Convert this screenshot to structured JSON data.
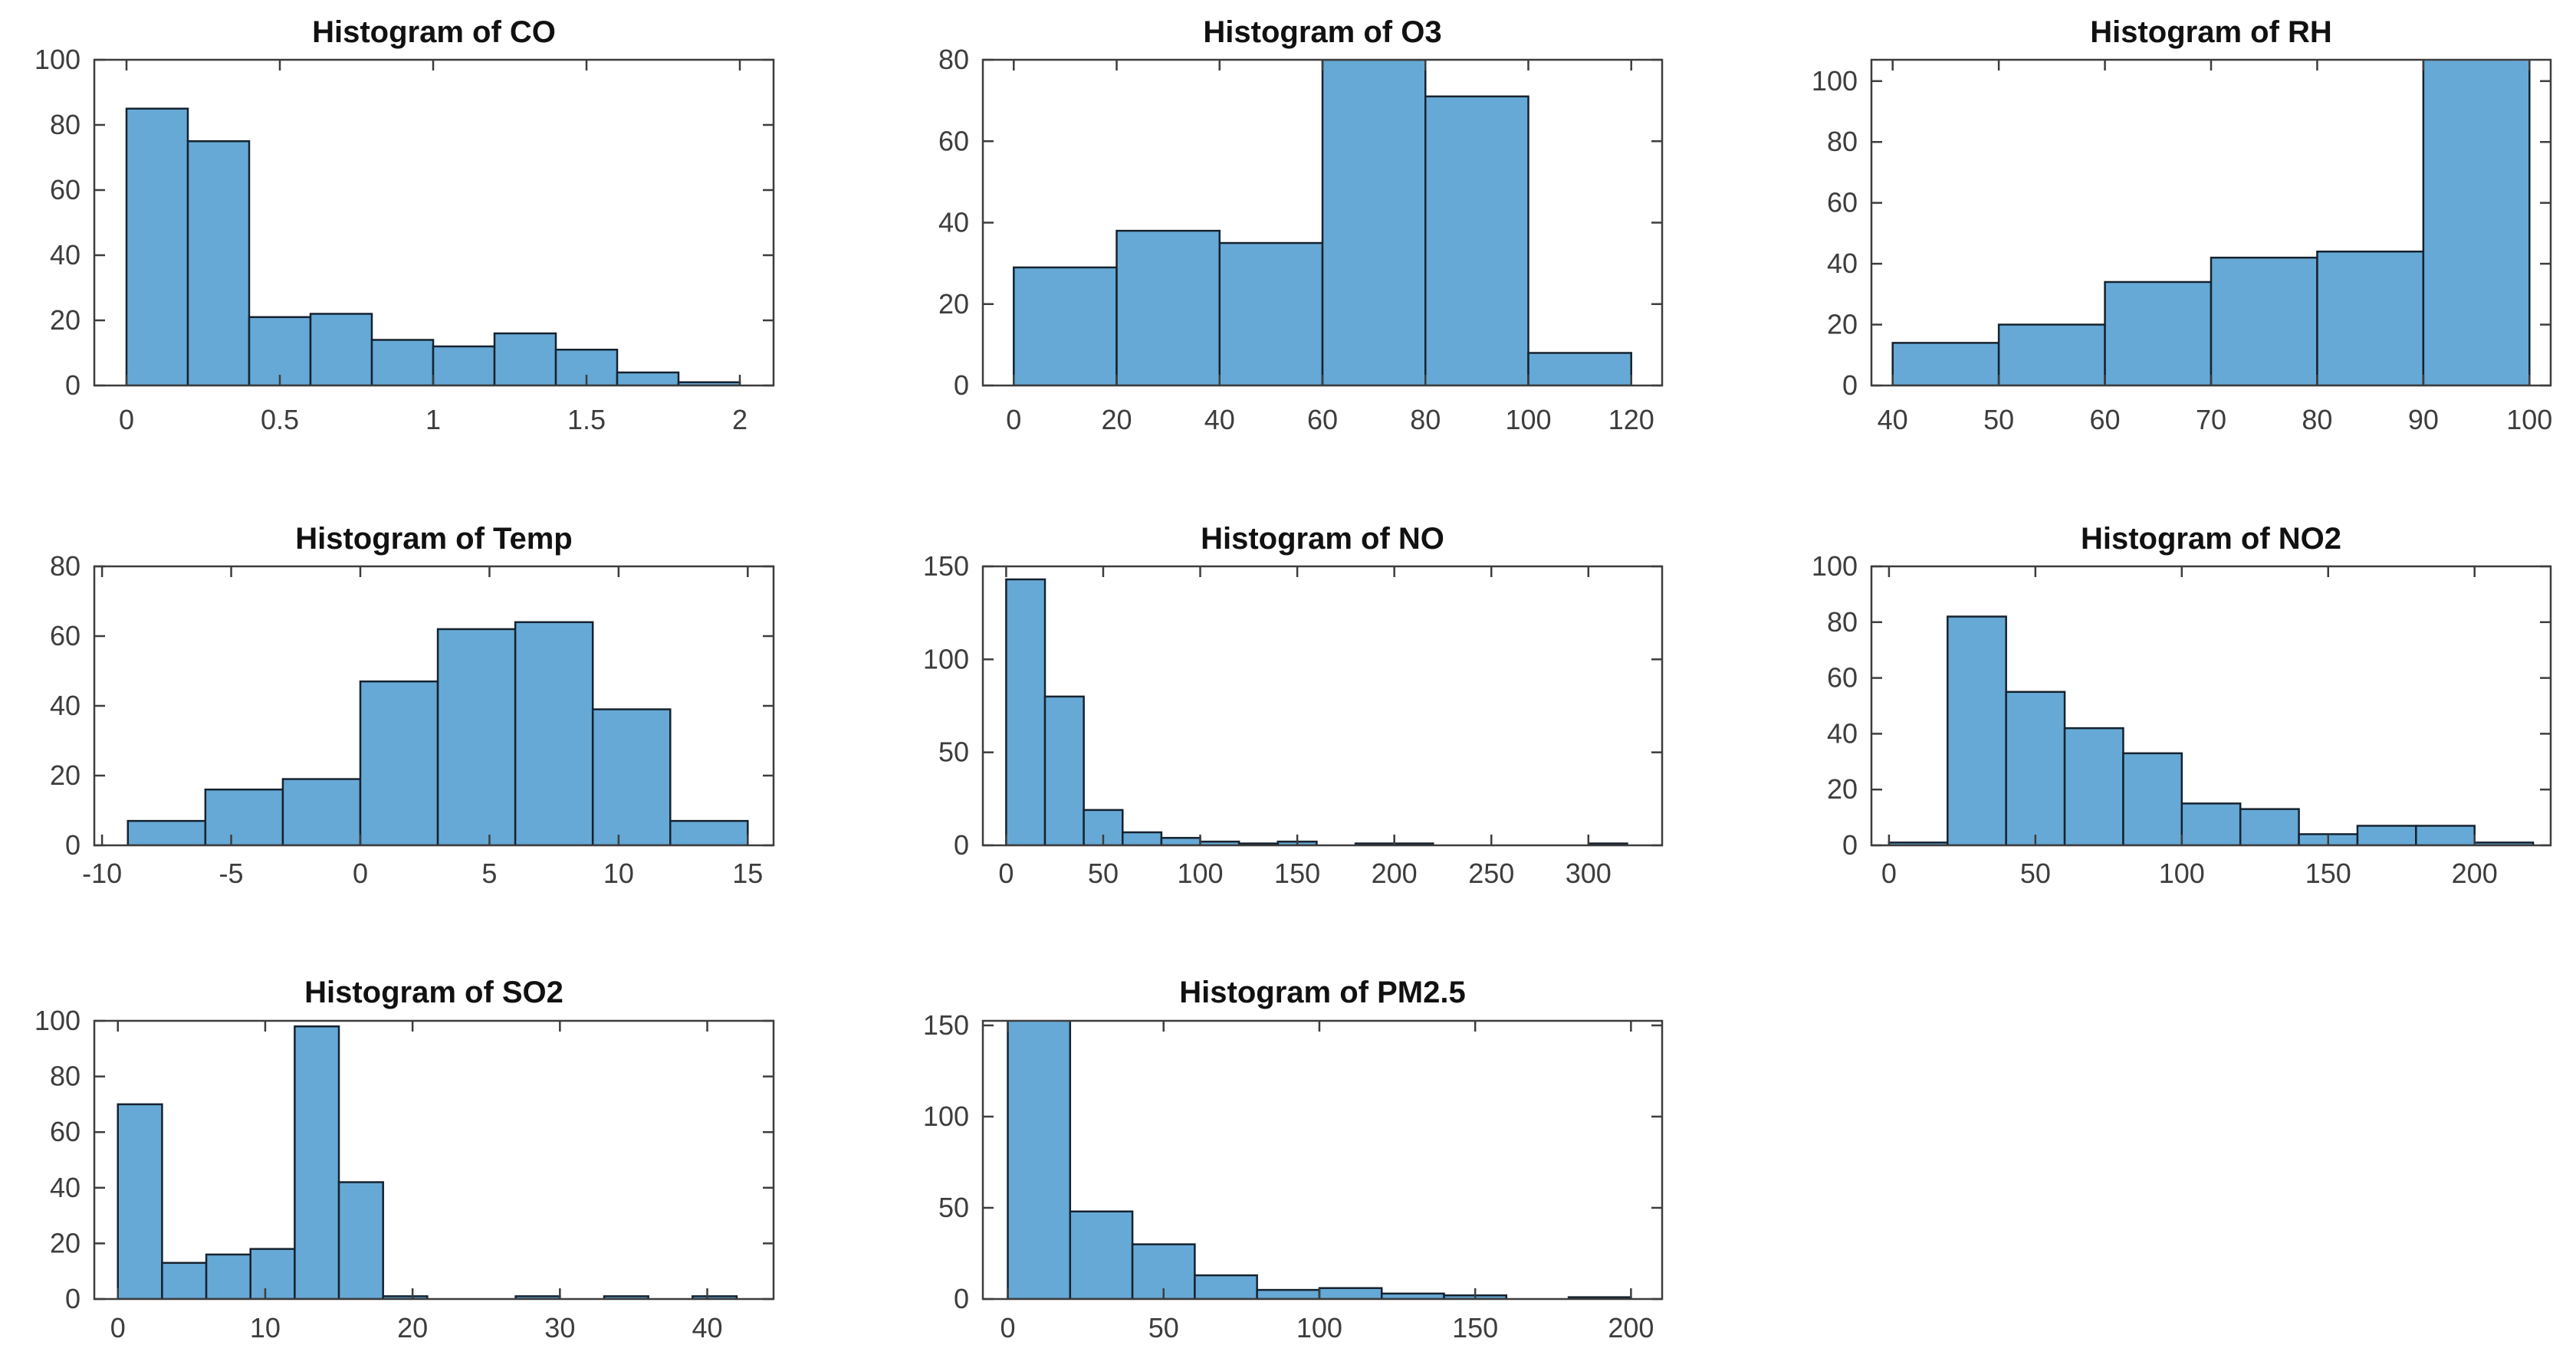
{
  "figure": {
    "background": "#ffffff",
    "description": "3x3 grid of MATLAB-style histograms, last cell empty"
  },
  "style": {
    "bar_fill": "#66A9D6",
    "bar_edge": "#16222e",
    "axis_color": "#3d3d3d",
    "title_color": "#111111"
  },
  "chart_data": [
    {
      "type": "bar",
      "name": "CO",
      "title": "Histogram of CO",
      "xlim": [
        -0.105,
        2.11
      ],
      "ylim": [
        0,
        100
      ],
      "xticks": [
        0,
        0.5,
        1,
        1.5,
        2
      ],
      "xtick_labels": [
        "0",
        "0.5",
        "1",
        "1.5",
        "2"
      ],
      "yticks": [
        0,
        20,
        40,
        60,
        80,
        100
      ],
      "ytick_labels": [
        "0",
        "20",
        "40",
        "60",
        "80",
        "100"
      ],
      "bins": [
        [
          0,
          0.2,
          85
        ],
        [
          0.2,
          0.4,
          75
        ],
        [
          0.4,
          0.6,
          21
        ],
        [
          0.6,
          0.8,
          22
        ],
        [
          0.8,
          1.0,
          14
        ],
        [
          1.0,
          1.2,
          12
        ],
        [
          1.2,
          1.4,
          16
        ],
        [
          1.4,
          1.6,
          11
        ],
        [
          1.6,
          1.8,
          4
        ],
        [
          1.8,
          2.0,
          1
        ]
      ]
    },
    {
      "type": "bar",
      "name": "O3",
      "title": "Histogram of O3",
      "xlim": [
        -6,
        126
      ],
      "ylim": [
        0,
        80
      ],
      "xticks": [
        0,
        20,
        40,
        60,
        80,
        100,
        120
      ],
      "xtick_labels": [
        "0",
        "20",
        "40",
        "60",
        "80",
        "100",
        "120"
      ],
      "yticks": [
        0,
        20,
        40,
        60,
        80
      ],
      "ytick_labels": [
        "0",
        "20",
        "40",
        "60",
        "80"
      ],
      "bins": [
        [
          0,
          20,
          29
        ],
        [
          20,
          40,
          38
        ],
        [
          40,
          60,
          35
        ],
        [
          60,
          80,
          80
        ],
        [
          80,
          100,
          71
        ],
        [
          100,
          120,
          8
        ]
      ]
    },
    {
      "type": "bar",
      "name": "RH",
      "title": "Histogram of RH",
      "xlim": [
        38,
        102
      ],
      "ylim": [
        0,
        107
      ],
      "xticks": [
        40,
        50,
        60,
        70,
        80,
        90,
        100
      ],
      "xtick_labels": [
        "40",
        "50",
        "60",
        "70",
        "80",
        "90",
        "100"
      ],
      "yticks": [
        0,
        20,
        40,
        60,
        80,
        100
      ],
      "ytick_labels": [
        "0",
        "20",
        "40",
        "60",
        "80",
        "100"
      ],
      "bins": [
        [
          40,
          50,
          14
        ],
        [
          50,
          60,
          20
        ],
        [
          60,
          70,
          34
        ],
        [
          70,
          80,
          42
        ],
        [
          80,
          90,
          44
        ],
        [
          90,
          100,
          109
        ]
      ],
      "note": "last bar clipped at top of axes"
    },
    {
      "type": "bar",
      "name": "Temp",
      "title": "Histogram of Temp",
      "xlim": [
        -10.3,
        16
      ],
      "ylim": [
        0,
        80
      ],
      "xticks": [
        -10,
        -5,
        0,
        5,
        10,
        15
      ],
      "xtick_labels": [
        "-10",
        "-5",
        "0",
        "5",
        "10",
        "15"
      ],
      "yticks": [
        0,
        20,
        40,
        60,
        80
      ],
      "ytick_labels": [
        "0",
        "20",
        "40",
        "60",
        "80"
      ],
      "bins": [
        [
          -9,
          -6,
          7
        ],
        [
          -6,
          -3,
          16
        ],
        [
          -3,
          0,
          19
        ],
        [
          0,
          3,
          47
        ],
        [
          3,
          6,
          62
        ],
        [
          6,
          9,
          64
        ],
        [
          9,
          12,
          39
        ],
        [
          12,
          15,
          7
        ]
      ]
    },
    {
      "type": "bar",
      "name": "NO",
      "title": "Histogram of NO",
      "xlim": [
        -12,
        338
      ],
      "ylim": [
        0,
        150
      ],
      "xticks": [
        0,
        50,
        100,
        150,
        200,
        250,
        300
      ],
      "xtick_labels": [
        "0",
        "50",
        "100",
        "150",
        "200",
        "250",
        "300"
      ],
      "yticks": [
        0,
        50,
        100,
        150
      ],
      "ytick_labels": [
        "0",
        "50",
        "100",
        "150"
      ],
      "bins": [
        [
          0,
          20,
          143
        ],
        [
          20,
          40,
          80
        ],
        [
          40,
          60,
          19
        ],
        [
          60,
          80,
          7
        ],
        [
          80,
          100,
          4
        ],
        [
          100,
          120,
          2
        ],
        [
          120,
          140,
          1
        ],
        [
          140,
          160,
          2
        ],
        [
          180,
          200,
          1
        ],
        [
          200,
          220,
          1
        ],
        [
          300,
          320,
          1
        ]
      ]
    },
    {
      "type": "bar",
      "name": "NO2",
      "title": "Histogram of NO2",
      "xlim": [
        -6,
        226
      ],
      "ylim": [
        0,
        100
      ],
      "xticks": [
        0,
        50,
        100,
        150,
        200
      ],
      "xtick_labels": [
        "0",
        "50",
        "100",
        "150",
        "200"
      ],
      "yticks": [
        0,
        20,
        40,
        60,
        80,
        100
      ],
      "ytick_labels": [
        "0",
        "20",
        "40",
        "60",
        "80",
        "100"
      ],
      "bins": [
        [
          0,
          20,
          1
        ],
        [
          20,
          40,
          82
        ],
        [
          40,
          60,
          55
        ],
        [
          60,
          80,
          42
        ],
        [
          80,
          100,
          33
        ],
        [
          100,
          120,
          15
        ],
        [
          120,
          140,
          13
        ],
        [
          140,
          160,
          4
        ],
        [
          160,
          180,
          7
        ],
        [
          180,
          200,
          7
        ],
        [
          200,
          220,
          1
        ]
      ]
    },
    {
      "type": "bar",
      "name": "SO2",
      "title": "Histogram of SO2",
      "xlim": [
        -1.6,
        44.5
      ],
      "ylim": [
        0,
        100
      ],
      "xticks": [
        0,
        10,
        20,
        30,
        40
      ],
      "xtick_labels": [
        "0",
        "10",
        "20",
        "30",
        "40"
      ],
      "yticks": [
        0,
        20,
        40,
        60,
        80,
        100
      ],
      "ytick_labels": [
        "0",
        "20",
        "40",
        "60",
        "80",
        "100"
      ],
      "bins": [
        [
          0,
          3,
          70
        ],
        [
          3,
          6,
          13
        ],
        [
          6,
          9,
          16
        ],
        [
          9,
          12,
          18
        ],
        [
          12,
          15,
          98
        ],
        [
          15,
          18,
          42
        ],
        [
          18,
          21,
          1
        ],
        [
          27,
          30,
          1
        ],
        [
          33,
          36,
          1
        ],
        [
          39,
          42,
          1
        ]
      ]
    },
    {
      "type": "bar",
      "name": "PM2.5",
      "title": "Histogram of PM2.5",
      "xlim": [
        -8,
        210
      ],
      "ylim": [
        0,
        152.5
      ],
      "xticks": [
        0,
        50,
        100,
        150,
        200
      ],
      "xtick_labels": [
        "0",
        "50",
        "100",
        "150",
        "200"
      ],
      "yticks": [
        0,
        50,
        100,
        150
      ],
      "ytick_labels": [
        "0",
        "50",
        "100",
        "150"
      ],
      "bins": [
        [
          0,
          20,
          154
        ],
        [
          20,
          40,
          48
        ],
        [
          40,
          60,
          30
        ],
        [
          60,
          80,
          13
        ],
        [
          80,
          100,
          5
        ],
        [
          100,
          120,
          6
        ],
        [
          120,
          140,
          3
        ],
        [
          140,
          160,
          2
        ],
        [
          180,
          200,
          1
        ]
      ],
      "note": "first bar clipped at top of axes"
    }
  ]
}
